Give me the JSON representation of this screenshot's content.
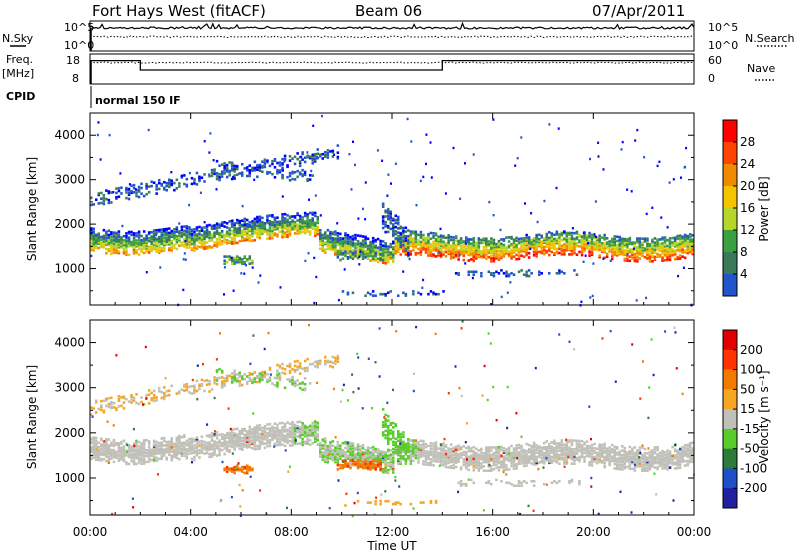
{
  "header": {
    "station": "Fort Hays West (fitACF)",
    "beam": "Beam 06",
    "date": "07/Apr/2011"
  },
  "top_panel": {
    "left_label": "N.Sky",
    "right_label": "N.Search",
    "left_ticks": [
      "10^5",
      "10^0"
    ],
    "right_ticks": [
      "10^5",
      "10^0"
    ]
  },
  "freq_panel": {
    "left_label_1": "Freq.",
    "left_label_2": "[MHz]",
    "right_label": "Nave",
    "left_ticks": [
      "18",
      "8"
    ],
    "right_ticks": [
      "60",
      "0"
    ],
    "cpid_label": "CPID",
    "cpid_value": "normal 150 IF",
    "freq_segments": [
      {
        "start_h": 0.0,
        "end_h": 2.0,
        "mhz": 16.5
      },
      {
        "start_h": 2.0,
        "end_h": 14.0,
        "mhz": 12.6
      },
      {
        "start_h": 14.0,
        "end_h": 24.0,
        "mhz": 16.5
      }
    ]
  },
  "chart_data": [
    {
      "type": "heatmap",
      "name": "power",
      "ylabel": "Slant Range [km]",
      "yticks": [
        1000,
        2000,
        3000,
        4000
      ],
      "ylim": [
        180,
        4500
      ],
      "xlim": [
        0,
        24
      ],
      "colorbar_label": "Power [dB]",
      "colorbar_ticks": [
        "28",
        "24",
        "20",
        "16",
        "12",
        "8",
        "4"
      ],
      "colors": [
        "#0000ff",
        "#2255cc",
        "#3a7a5a",
        "#3aa040",
        "#b7d62a",
        "#f5c400",
        "#f08a00",
        "#ff4400",
        "#ff0000"
      ]
    },
    {
      "type": "heatmap",
      "name": "velocity",
      "ylabel": "Slant Range [km]",
      "yticks": [
        1000,
        2000,
        3000,
        4000
      ],
      "ylim": [
        180,
        4500
      ],
      "xlim": [
        0,
        24
      ],
      "xlabel": "Time UT",
      "xticks": [
        "00:00",
        "04:00",
        "08:00",
        "12:00",
        "16:00",
        "20:00",
        "00:00"
      ],
      "colorbar_label": "Velocity [m s⁻¹]",
      "colorbar_ticks": [
        "200",
        "100",
        "50",
        "15",
        "-15",
        "-50",
        "-100",
        "-200"
      ],
      "colors": [
        "#2020a0",
        "#1f50c8",
        "#2d7a3a",
        "#5acc2a",
        "#c0c0b8",
        "#f5a623",
        "#f27a00",
        "#ff3300",
        "#e00000"
      ]
    }
  ]
}
